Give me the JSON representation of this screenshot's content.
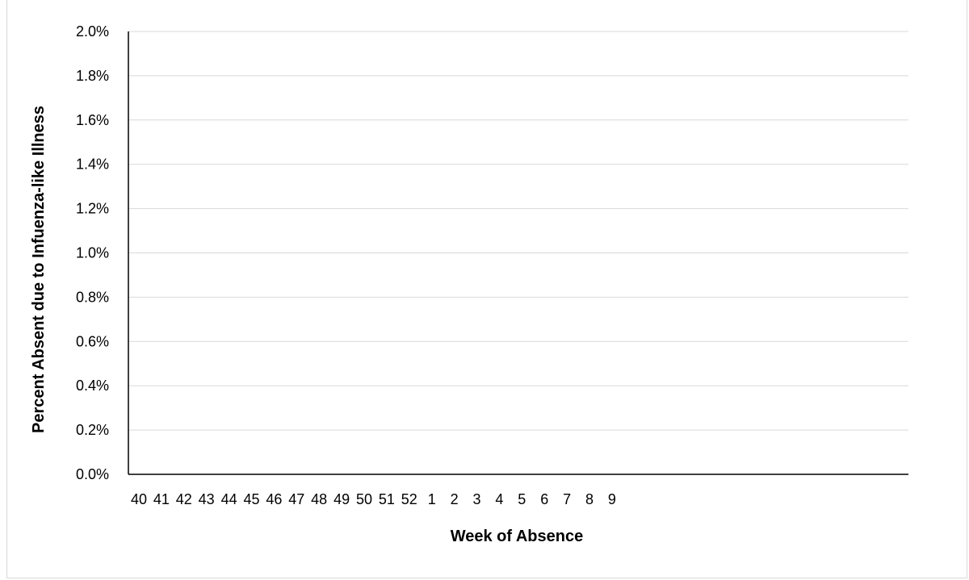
{
  "chart_data": {
    "type": "line",
    "title": "",
    "xlabel": "Week of Absence",
    "ylabel": "Percent Absent  due to Infuenza-like Illness",
    "categories": [
      "40",
      "41",
      "42",
      "43",
      "44",
      "45",
      "46",
      "47",
      "48",
      "49",
      "50",
      "51",
      "52",
      "1",
      "2",
      "3",
      "4",
      "5",
      "6",
      "7",
      "8",
      "9"
    ],
    "series": [],
    "ylim": [
      0,
      0.02
    ],
    "y_ticks": [
      "0.0%",
      "0.2%",
      "0.4%",
      "0.6%",
      "0.8%",
      "1.0%",
      "1.2%",
      "1.4%",
      "1.6%",
      "1.8%",
      "2.0%"
    ],
    "grid": true,
    "legend": "none"
  },
  "colors": {
    "grid": "#d9d9d9",
    "axis": "#000000",
    "frame": "#d9d9d9"
  }
}
